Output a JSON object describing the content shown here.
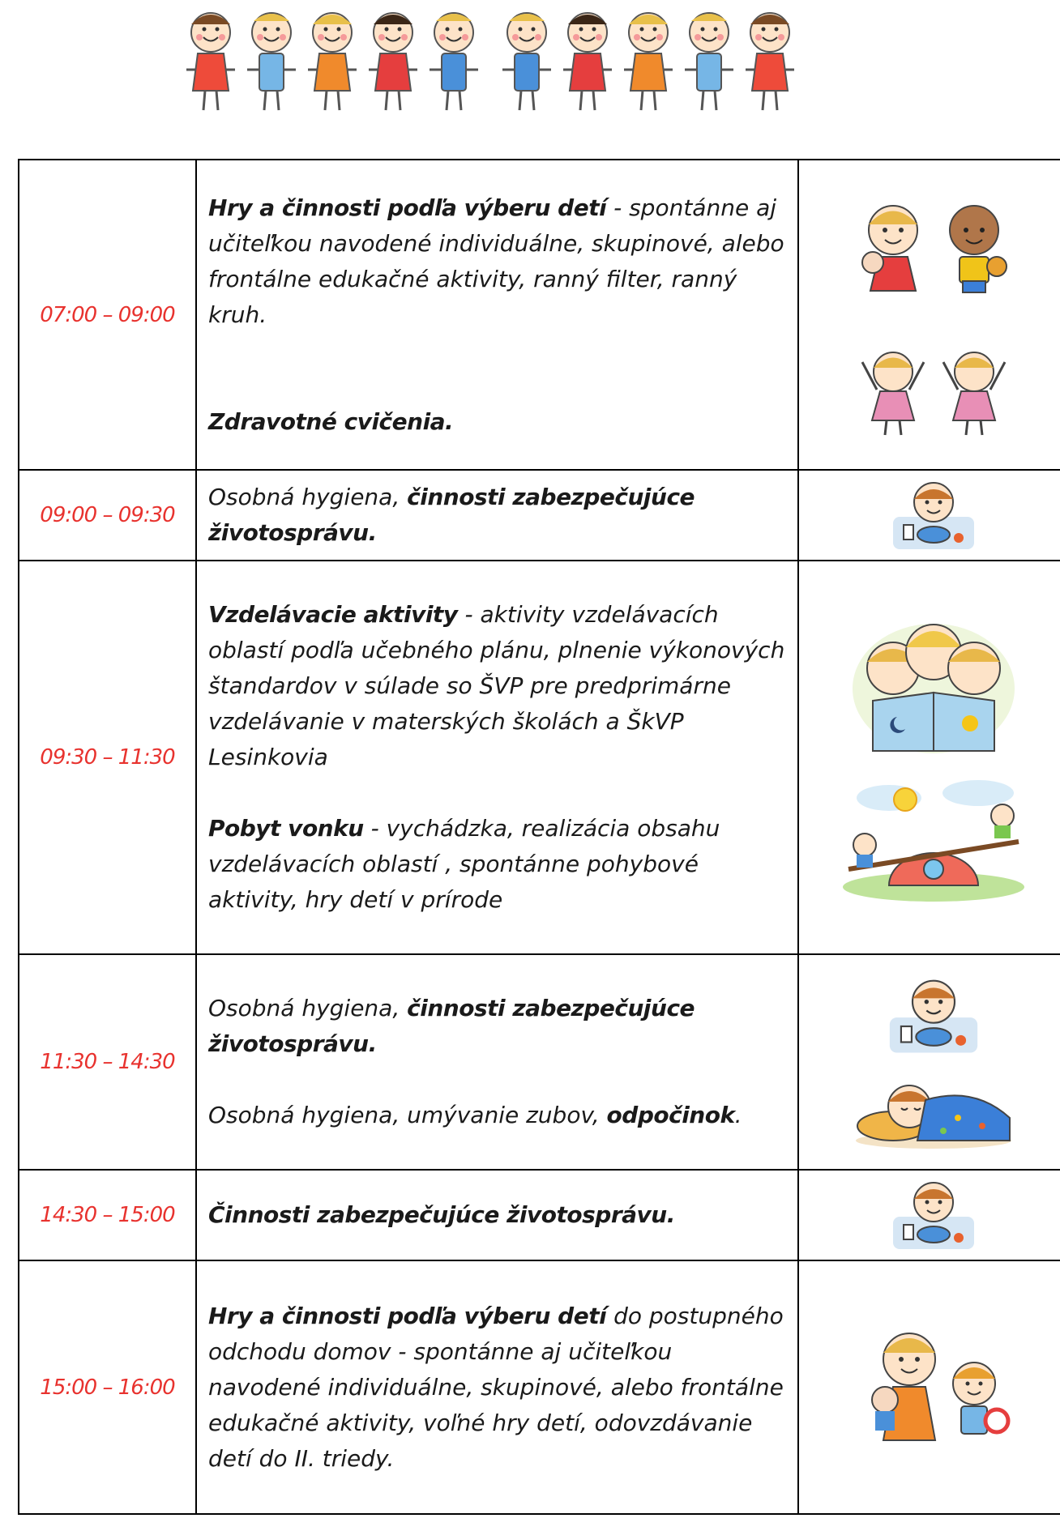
{
  "rows": [
    {
      "time": "07:00 – 09:00",
      "p1_bold": "Hry a činnosti podľa výberu detí",
      "p1_rest": " - spontánne aj učiteľkou navodené  individuálne, skupinové, alebo frontálne edukačné aktivity, ranný filter, ranný kruh.",
      "p2_bold": "Zdravotné cvičenia."
    },
    {
      "time": "09:00 – 09:30",
      "p1_text": "Osobná hygiena, ",
      "p1_bold": "činnosti zabezpečujúce životosprávu."
    },
    {
      "time": "09:30 – 11:30",
      "p1_bold": "Vzdelávacie aktivity",
      "p1_rest": "  - aktivity vzdelávacích oblastí podľa učebného plánu, plnenie výkonových štandardov v súlade so ŠVP pre predprimárne vzdelávanie v materských školách a ŠkVP Lesinkovia",
      "p2_bold": "Pobyt vonku",
      "p2_rest": " - vychádzka, realizácia obsahu vzdelávacích oblastí , spontánne pohybové aktivity, hry detí v prírode"
    },
    {
      "time": "11:30 – 14:30",
      "p1_text": "Osobná hygiena, ",
      "p1_bold": "činnosti zabezpečujúce životosprávu.",
      "p2_text": "Osobná hygiena, umývanie zubov, ",
      "p2_bold": "odpočinok",
      "p2_end": "."
    },
    {
      "time": "14:30 – 15:00",
      "p1_bold": "Činnosti zabezpečujúce životosprávu."
    },
    {
      "time": "15:00 – 16:00",
      "p1_bold": "Hry a činnosti podľa výberu detí",
      "p1_rest": " do postupného odchodu domov - spontánne aj učiteľkou navodené  individuálne, skupinové, alebo frontálne edukačné aktivity, voľné hry detí, odovzdávanie detí do II. triedy."
    }
  ],
  "illustrations": [
    "kids-with-toys-illustration",
    "kids-exercising-illustration",
    "child-eating-illustration",
    "kids-reading-book-illustration",
    "kids-seesaw-outdoors-illustration",
    "child-sleeping-illustration",
    "kids-playing-illustration"
  ],
  "colors": {
    "time": "#e8322e",
    "border": "#000000",
    "text": "#1a1a1a"
  }
}
